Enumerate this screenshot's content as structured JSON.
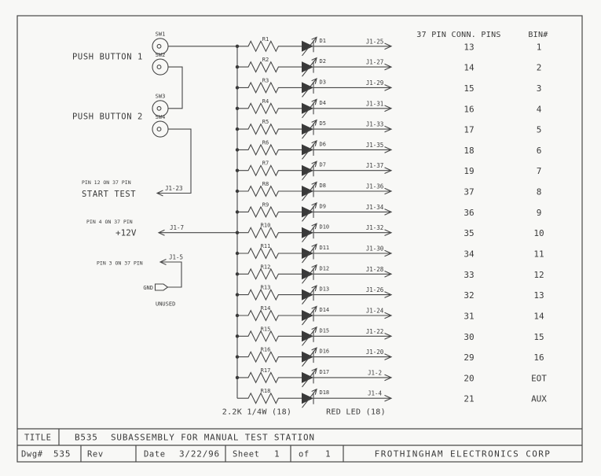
{
  "colors": {
    "ink": "#474747",
    "text": "#3a3a3a",
    "paper": "#f8f8f6"
  },
  "pin_table": {
    "pins_header": "37 PIN CONN. PINS",
    "bin_header": "BIN#"
  },
  "rows": [
    {
      "r": "R1",
      "d": "D1",
      "j": "J1-25",
      "pin": "13",
      "bin": "1"
    },
    {
      "r": "R2",
      "d": "D2",
      "j": "J1-27",
      "pin": "14",
      "bin": "2"
    },
    {
      "r": "R3",
      "d": "D3",
      "j": "J1-29",
      "pin": "15",
      "bin": "3"
    },
    {
      "r": "R4",
      "d": "D4",
      "j": "J1-31",
      "pin": "16",
      "bin": "4"
    },
    {
      "r": "R5",
      "d": "D5",
      "j": "J1-33",
      "pin": "17",
      "bin": "5"
    },
    {
      "r": "R6",
      "d": "D6",
      "j": "J1-35",
      "pin": "18",
      "bin": "6"
    },
    {
      "r": "R7",
      "d": "D7",
      "j": "J1-37",
      "pin": "19",
      "bin": "7"
    },
    {
      "r": "R8",
      "d": "D8",
      "j": "J1-36",
      "pin": "37",
      "bin": "8"
    },
    {
      "r": "R9",
      "d": "D9",
      "j": "J1-34",
      "pin": "36",
      "bin": "9"
    },
    {
      "r": "R10",
      "d": "D10",
      "j": "J1-32",
      "pin": "35",
      "bin": "10"
    },
    {
      "r": "R11",
      "d": "D11",
      "j": "J1-30",
      "pin": "34",
      "bin": "11"
    },
    {
      "r": "R12",
      "d": "D12",
      "j": "J1-28",
      "pin": "33",
      "bin": "12"
    },
    {
      "r": "R13",
      "d": "D13",
      "j": "J1-26",
      "pin": "32",
      "bin": "13"
    },
    {
      "r": "R14",
      "d": "D14",
      "j": "J1-24",
      "pin": "31",
      "bin": "14"
    },
    {
      "r": "R15",
      "d": "D15",
      "j": "J1-22",
      "pin": "30",
      "bin": "15"
    },
    {
      "r": "R16",
      "d": "D16",
      "j": "J1-20",
      "pin": "29",
      "bin": "16"
    },
    {
      "r": "R17",
      "d": "D17",
      "j": "J1-2",
      "pin": "20",
      "bin": "EOT"
    },
    {
      "r": "R18",
      "d": "D18",
      "j": "J1-4",
      "pin": "21",
      "bin": "AUX"
    }
  ],
  "left": {
    "push_button_1": "PUSH BUTTON 1",
    "push_button_2": "PUSH BUTTON 2",
    "sw_labels": [
      "SW1",
      "SW2",
      "SW3",
      "SW4"
    ],
    "start_test_note": "PIN 12 ON 37 PIN",
    "start_test": "START TEST",
    "start_test_conn": "J1-23",
    "v12_note": "PIN 4 ON 37 PIN",
    "v12": "+12V",
    "v12_conn": "J1-7",
    "pin3_note": "PIN 3 ON 37 PIN",
    "pin3_conn": "J1-5",
    "gnd": "GND",
    "unused": "UNUSED"
  },
  "notes": {
    "resistors": "2.2K 1/4W (18)",
    "leds": "RED LED (18)"
  },
  "title_block": {
    "title_label": "TITLE",
    "drawing_number": "B535",
    "title": "SUBASSEMBLY FOR MANUAL TEST STATION",
    "dwg_label": "Dwg#",
    "dwg_value": "535",
    "rev_label": "Rev",
    "date_label": "Date",
    "date_value": "3/22/96",
    "sheet_label": "Sheet",
    "sheet_value": "1",
    "of_label": "of",
    "of_total": "1",
    "company": "FROTHINGHAM ELECTRONICS CORP"
  }
}
